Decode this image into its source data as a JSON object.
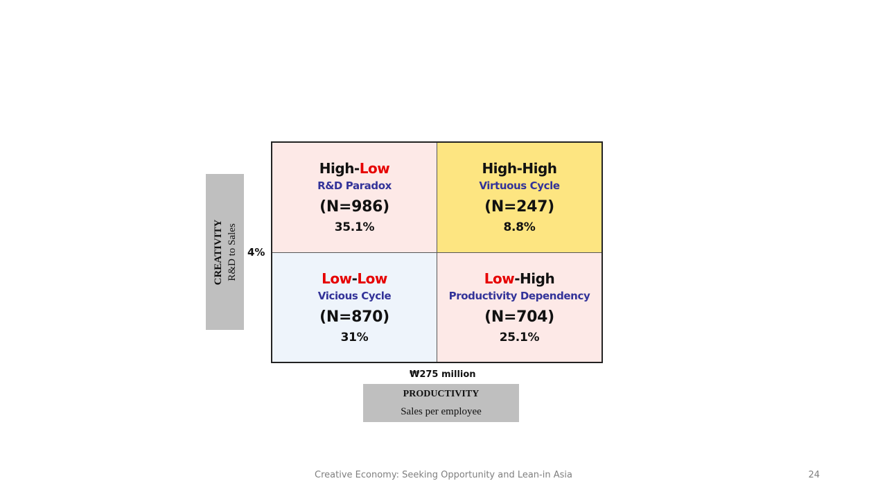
{
  "colors": {
    "red_word": "#e60000",
    "subtitle_blue": "#333399",
    "pink_cell": "#fde9e7",
    "yellow_cell": "#fde581",
    "blue_cell": "#eef4fb",
    "axis_box": "#bfbfbf"
  },
  "quadrants": {
    "top_left": {
      "title_part1": "High-",
      "title_part2": "Low",
      "subtitle": "R&D Paradox",
      "count": "(N=986)",
      "percent": "35.1%"
    },
    "top_right": {
      "title_part1": "High-High",
      "title_part2": "",
      "subtitle": "Virtuous Cycle",
      "count": "(N=247)",
      "percent": "8.8%"
    },
    "bottom_left": {
      "title_part1": "Low",
      "title_part2": "-",
      "title_part3": "Low",
      "subtitle": "Vicious Cycle",
      "count": "(N=870)",
      "percent": "31%"
    },
    "bottom_right": {
      "title_part1": "Low",
      "title_part2": "-High",
      "subtitle": "Productivity Dependency",
      "count": "(N=704)",
      "percent": "25.1%"
    }
  },
  "axes": {
    "y": {
      "title": "CREATIVITY",
      "subtitle": "R&D to Sales",
      "threshold": "4%"
    },
    "x": {
      "title": "PRODUCTIVITY",
      "subtitle": "Sales per employee",
      "threshold": "₩275 million"
    }
  },
  "footer": {
    "text": "Creative Economy: Seeking Opportunity and Lean-in Asia",
    "page_number": "24"
  }
}
